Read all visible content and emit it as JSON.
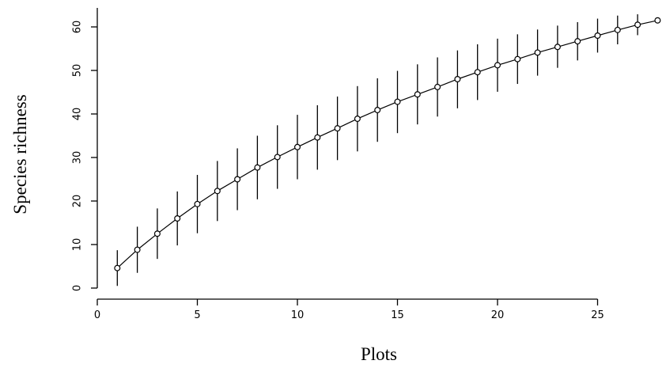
{
  "chart_data": {
    "type": "scatter",
    "title": "",
    "xlabel": "Plots",
    "ylabel": "Species richness",
    "xlim": [
      0,
      28.5
    ],
    "ylim": [
      -1,
      63
    ],
    "xticks": [
      0,
      5,
      10,
      15,
      20,
      25
    ],
    "xtick_labels": [
      "0",
      "5",
      "10",
      "15",
      "20",
      "25"
    ],
    "yticks": [
      0,
      10,
      20,
      30,
      40,
      50,
      60
    ],
    "ytick_labels": [
      "0",
      "10",
      "20",
      "30",
      "40",
      "50",
      "60"
    ],
    "grid": false,
    "legend": "none",
    "colors": {
      "line": "#000000",
      "marker": "#000000",
      "background": "#ffffff"
    },
    "series": [
      {
        "x": [
          1,
          2,
          3,
          4,
          5,
          6,
          7,
          8,
          9,
          10,
          11,
          12,
          13,
          14,
          15,
          16,
          17,
          18,
          19,
          20,
          21,
          22,
          23,
          24,
          25,
          26,
          27,
          28
        ],
        "y": [
          4.6,
          8.8,
          12.5,
          16.0,
          19.3,
          22.3,
          25.0,
          27.7,
          30.1,
          32.4,
          34.6,
          36.7,
          38.9,
          40.9,
          42.8,
          44.5,
          46.2,
          48.0,
          49.6,
          51.2,
          52.6,
          54.1,
          55.4,
          56.7,
          58.0,
          59.3,
          60.5,
          61.5
        ],
        "lower": [
          0.5,
          3.5,
          6.7,
          9.8,
          12.6,
          15.4,
          17.9,
          20.4,
          22.8,
          25.0,
          27.2,
          29.4,
          31.4,
          33.6,
          35.6,
          37.6,
          39.4,
          41.3,
          43.2,
          45.1,
          46.9,
          48.8,
          50.6,
          52.3,
          54.1,
          56.0,
          58.1,
          61.5
        ],
        "upper": [
          8.7,
          14.1,
          18.3,
          22.2,
          26.0,
          29.2,
          32.1,
          35.0,
          37.4,
          39.8,
          42.0,
          44.0,
          46.4,
          48.2,
          49.9,
          51.4,
          53.0,
          54.6,
          56.0,
          57.3,
          58.3,
          59.4,
          60.3,
          61.1,
          61.9,
          62.6,
          62.9,
          61.5
        ]
      }
    ]
  }
}
